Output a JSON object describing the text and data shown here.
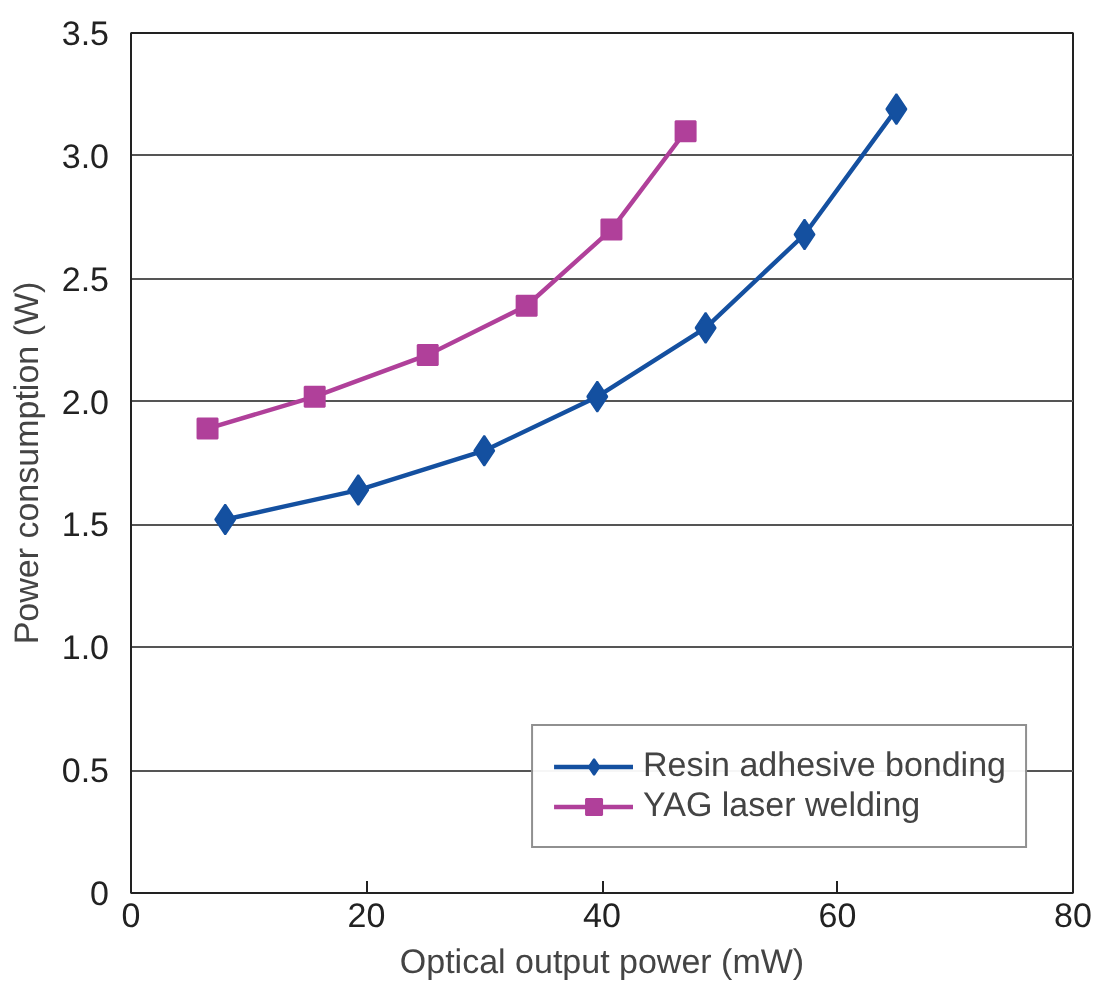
{
  "chart_data": {
    "type": "line",
    "xlabel": "Optical output power (mW)",
    "ylabel": "Power consumption (W)",
    "xlim": [
      0,
      80
    ],
    "xticks": [
      0,
      20,
      40,
      60,
      80
    ],
    "ylim": [
      0,
      3.5
    ],
    "yticks": [
      0,
      0.5,
      {
        "value": 1,
        "label": "1.0"
      },
      1.5,
      {
        "value": 2,
        "label": "2.0"
      },
      2.5,
      {
        "value": 3,
        "label": "3.0"
      },
      3.5
    ],
    "grid": "y",
    "legend": "bottom right",
    "line_style": "solid",
    "series": [
      {
        "name": "Resin adhesive bonding",
        "color": "#1450a0",
        "marker": "diamond",
        "x": [
          8.0,
          19.3,
          30.0,
          39.6,
          48.8,
          57.2,
          65.0
        ],
        "values": [
          1.52,
          1.64,
          1.8,
          2.02,
          2.3,
          2.68,
          3.19
        ]
      },
      {
        "name": "YAG laser welding",
        "color": "#b0409a",
        "marker": "square",
        "x": [
          6.5,
          15.6,
          25.2,
          33.6,
          40.8,
          47.1
        ],
        "values": [
          1.89,
          2.02,
          2.19,
          2.39,
          2.7,
          3.1
        ]
      }
    ]
  }
}
